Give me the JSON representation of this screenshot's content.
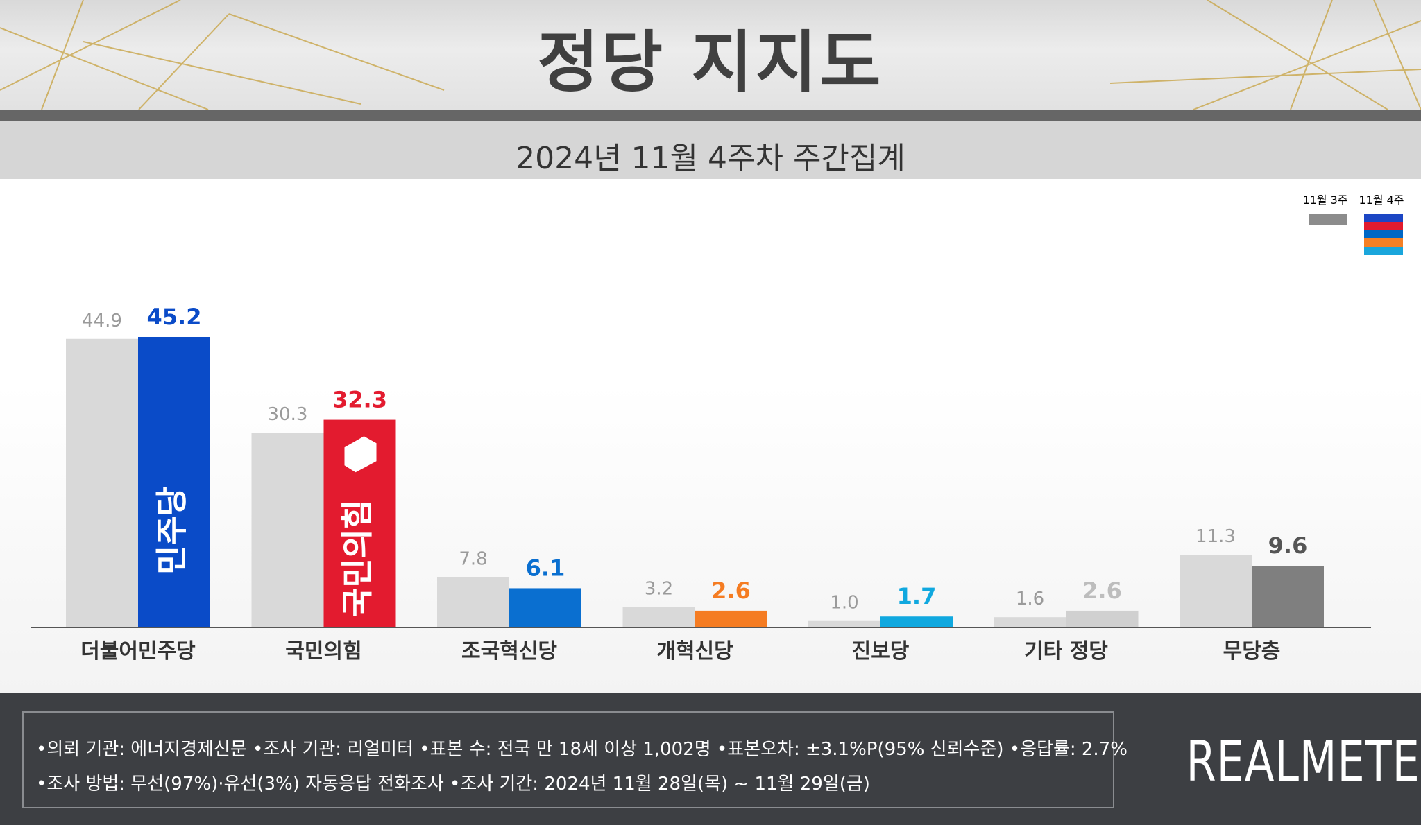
{
  "header": {
    "title": "정당 지지도",
    "subtitle": "2024년 11월 4주차 주간집계"
  },
  "legend": {
    "prev_label": "11월 3주",
    "curr_label": "11월 4주",
    "prev_color": "#8c8c8c",
    "curr_colors": [
      "#1c46c4",
      "#e11b2e",
      "#0067c5",
      "#f58025",
      "#1aa6dc"
    ]
  },
  "chart_data": {
    "type": "bar",
    "categories": [
      "더불어민주당",
      "국민의힘",
      "조국혁신당",
      "개혁신당",
      "진보당",
      "기타 정당",
      "무당층"
    ],
    "series": [
      {
        "name": "11월 3주",
        "values": [
          44.9,
          30.3,
          7.8,
          3.2,
          1.0,
          1.6,
          11.3
        ]
      },
      {
        "name": "11월 4주",
        "values": [
          45.2,
          32.3,
          6.1,
          2.6,
          1.7,
          2.6,
          9.6
        ]
      }
    ],
    "prev_color": "#d9d9d9",
    "curr_colors": [
      "#0a4bc8",
      "#e31b2f",
      "#0a6fd0",
      "#f57c22",
      "#10a8df",
      "#d0d0d0",
      "#7f7f7f"
    ],
    "curr_label_colors": [
      "#0a4bc8",
      "#e31b2f",
      "#0a6fd0",
      "#f57c22",
      "#10a8df",
      "#bdbdbd",
      "#555555"
    ],
    "prev_label_color": "#9a9a9a",
    "bar_logos": [
      "민주당",
      "국민의힘"
    ],
    "grid": false,
    "legend_position": "top-right"
  },
  "footer": {
    "line1": "•의뢰 기관: 에너지경제신문  •조사 기관: 리얼미터 •표본 수: 전국 만 18세 이상 1,002명 •표본오차: ±3.1%P(95% 신뢰수준) •응답률: 2.7%",
    "line2": "•조사 방법: 무선(97%)·유선(3%) 자동응답 전화조사 •조사 기간: 2024년 11월 28일(목) ~ 11월 29일(금)",
    "brand": "REALMETER"
  }
}
